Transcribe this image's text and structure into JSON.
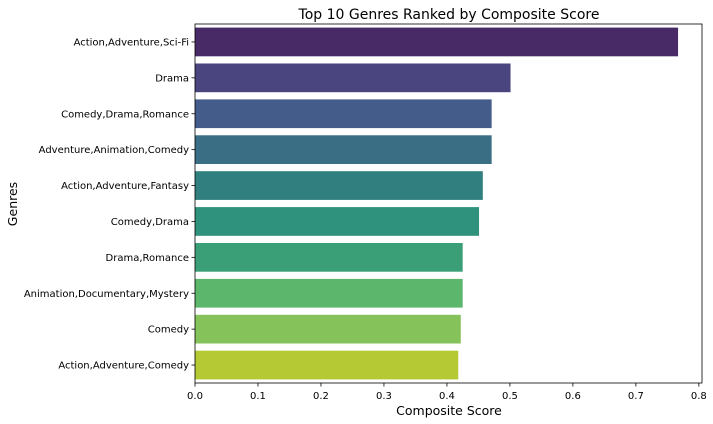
{
  "chart_data": {
    "type": "bar",
    "orientation": "horizontal",
    "title": "Top 10 Genres Ranked by Composite Score",
    "xlabel": "Composite Score",
    "ylabel": "Genres",
    "xlim": [
      0,
      0.805
    ],
    "xticks": [
      0.0,
      0.1,
      0.2,
      0.3,
      0.4,
      0.5,
      0.6,
      0.7,
      0.8
    ],
    "xtick_labels": [
      "0.0",
      "0.1",
      "0.2",
      "0.3",
      "0.4",
      "0.5",
      "0.6",
      "0.7",
      "0.8"
    ],
    "grid": false,
    "legend": "none",
    "categories": [
      "Action,Adventure,Sci-Fi",
      "Drama",
      "Comedy,Drama,Romance",
      "Adventure,Animation,Comedy",
      "Action,Adventure,Fantasy",
      "Comedy,Drama",
      "Drama,Romance",
      "Animation,Documentary,Mystery",
      "Comedy",
      "Action,Adventure,Comedy"
    ],
    "values": [
      0.767,
      0.501,
      0.471,
      0.471,
      0.457,
      0.451,
      0.425,
      0.425,
      0.422,
      0.418
    ],
    "colors": [
      "#482a67",
      "#4a447f",
      "#445c89",
      "#3a6e85",
      "#31807f",
      "#2f927c",
      "#3a9f77",
      "#5cb76c",
      "#86c25a",
      "#b4c934"
    ]
  }
}
